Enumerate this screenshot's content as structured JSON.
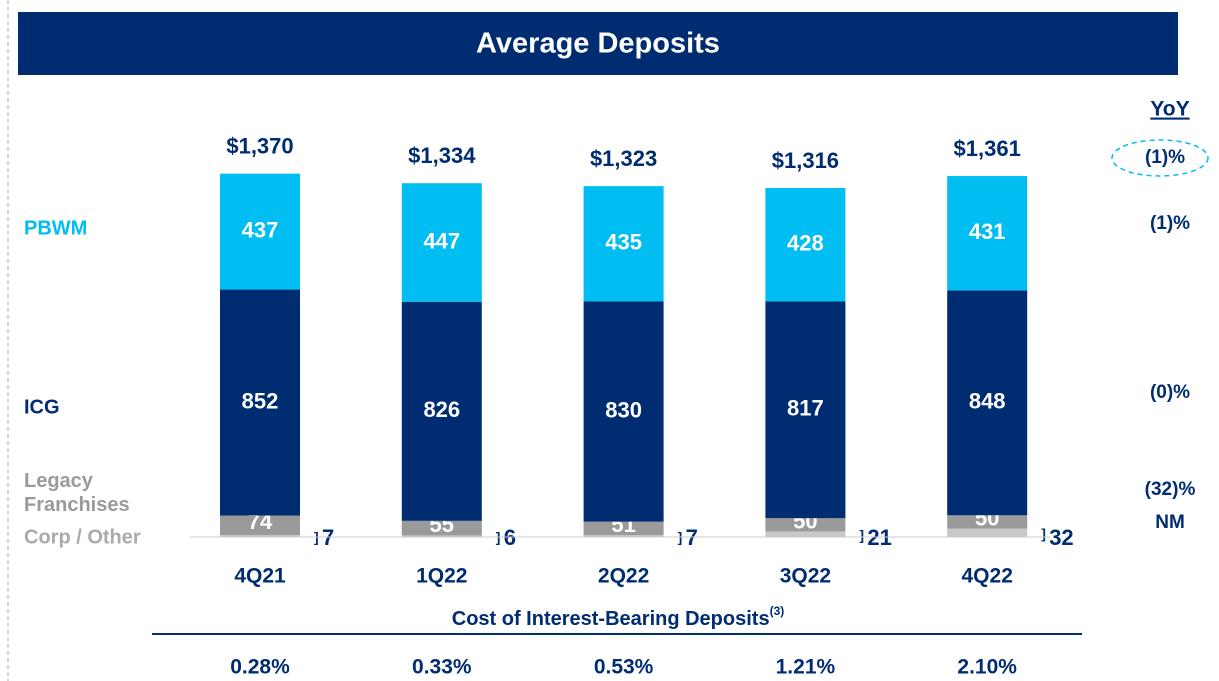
{
  "chart_data": {
    "type": "stacked-bar",
    "title": "Average Deposits",
    "categories": [
      "4Q21",
      "1Q22",
      "2Q22",
      "3Q22",
      "4Q22"
    ],
    "series": [
      {
        "name": "Corp / Other",
        "color": "#c8c8c8",
        "values": [
          7,
          6,
          7,
          21,
          32
        ],
        "yoy": "NM"
      },
      {
        "name": "Legacy Franchises",
        "color": "#9a9a9a",
        "values": [
          74,
          55,
          51,
          50,
          50
        ],
        "yoy": "(32)%"
      },
      {
        "name": "ICG",
        "color": "#002d72",
        "values": [
          852,
          826,
          830,
          817,
          848
        ],
        "yoy": "(0)%"
      },
      {
        "name": "PBWM",
        "color": "#00bdf2",
        "values": [
          437,
          447,
          435,
          428,
          431
        ],
        "yoy": "(1)%"
      }
    ],
    "totals": {
      "values": [
        1370,
        1334,
        1323,
        1316,
        1361
      ],
      "value_labels": [
        "$1,370",
        "$1,334",
        "$1,323",
        "$1,316",
        "$1,361"
      ],
      "yoy": "(1)%"
    },
    "yoy_title": "YoY",
    "cost": {
      "title": "Cost of Interest-Bearing Deposits",
      "note": "(3)",
      "values": [
        "0.28%",
        "0.33%",
        "0.53%",
        "1.21%",
        "2.10%"
      ]
    }
  }
}
